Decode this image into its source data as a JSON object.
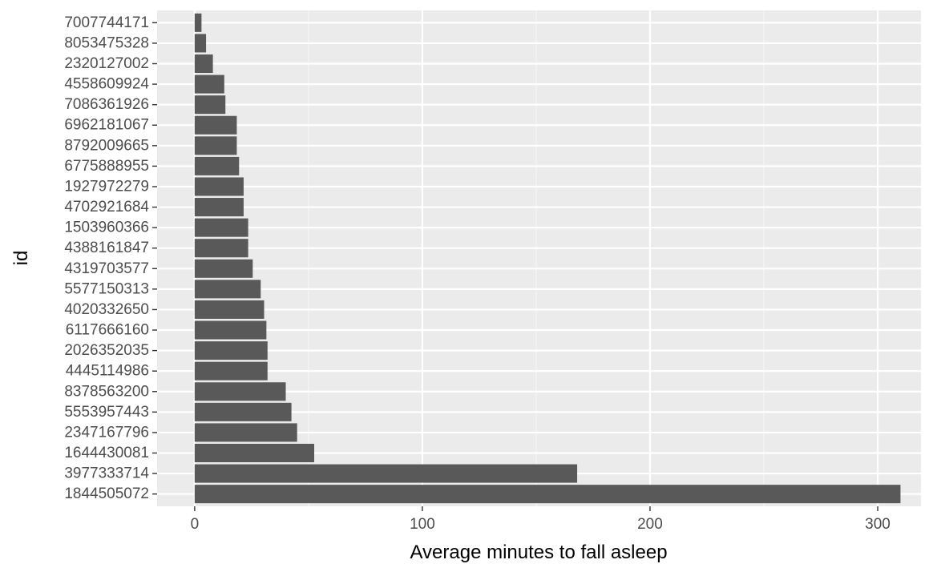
{
  "chart_data": {
    "type": "bar",
    "orientation": "horizontal",
    "title": "",
    "xlabel": "Average minutes to fall asleep",
    "ylabel": "id",
    "categories": [
      "7007744171",
      "8053475328",
      "2320127002",
      "4558609924",
      "7086361926",
      "6962181067",
      "8792009665",
      "6775888955",
      "1927972279",
      "4702921684",
      "1503960366",
      "4388161847",
      "4319703577",
      "5577150313",
      "4020332650",
      "6117666160",
      "2026352035",
      "4445114986",
      "8378563200",
      "5553957443",
      "2347167796",
      "1644430081",
      "3977333714",
      "1844505072"
    ],
    "values": [
      3,
      5,
      8,
      13,
      13.5,
      18.5,
      18.5,
      19.5,
      21.5,
      21.5,
      23.5,
      23.5,
      25.5,
      29,
      30.5,
      31.5,
      32,
      32,
      40,
      42.5,
      45,
      52.5,
      168,
      310
    ],
    "xlim": [
      -16.5,
      319
    ],
    "xticks": [
      0,
      100,
      200,
      300
    ],
    "xtick_labels": [
      "0",
      "100",
      "200",
      "300"
    ],
    "grid": true,
    "colors": {
      "bar": "#595959",
      "panel": "#ebebeb",
      "grid_major": "#ffffff",
      "grid_minor": "#f5f5f5",
      "tick_label": "#4d4d4d",
      "tick_mark": "#333333",
      "axis_title": "#000000"
    }
  }
}
